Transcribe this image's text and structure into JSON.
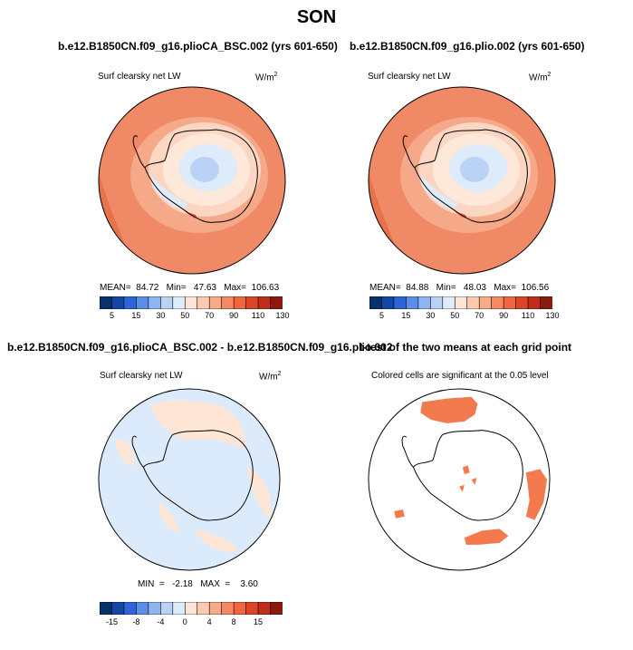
{
  "figure": {
    "title": "SON"
  },
  "panels": {
    "top_left": {
      "title": "b.e12.B1850CN.f09_g16.plioCA_BSC.002 (yrs 601-650)",
      "variable": "Surf clearsky net LW",
      "units_base": "W/m",
      "units_exp": "2",
      "stats": "MEAN=  84.72   Min=   47.63   Max=  106.63"
    },
    "top_right": {
      "title": "b.e12.B1850CN.f09_g16.plio.002 (yrs 601-650)",
      "variable": "Surf clearsky net LW",
      "units_base": "W/m",
      "units_exp": "2",
      "stats": "MEAN=  84.88   Min=   48.03   Max=  106.56"
    },
    "bottom_left": {
      "title": "b.e12.B1850CN.f09_g16.plioCA_BSC.002 - b.e12.B1850CN.f09_g16.plio.002",
      "variable": "Surf clearsky net LW",
      "units_base": "W/m",
      "units_exp": "2",
      "stats": "MIN  =   -2.18   MAX  =    3.60"
    },
    "bottom_right": {
      "title": "t-test of the two means at each grid point",
      "variable": "Colored cells are significant at the 0.05 level"
    }
  },
  "colorbars": {
    "absolute": {
      "labels": [
        "5",
        "15",
        "30",
        "50",
        "70",
        "90",
        "110",
        "130"
      ],
      "colors": [
        "#08306b",
        "#1346a5",
        "#2c66d6",
        "#5b8ee8",
        "#8fb4f2",
        "#b9d2f6",
        "#deebfa",
        "#fce5d6",
        "#fbcab0",
        "#f8ab88",
        "#f58963",
        "#ef6640",
        "#dc4528",
        "#be2e1a",
        "#8a1a0d"
      ]
    },
    "difference": {
      "labels": [
        "-15",
        "-8",
        "-4",
        "0",
        "4",
        "8",
        "15"
      ],
      "colors": [
        "#08306b",
        "#1346a5",
        "#2c66d6",
        "#5b8ee8",
        "#8fb4f2",
        "#b9d2f6",
        "#deebfa",
        "#fce5d6",
        "#fbcab0",
        "#f8ab88",
        "#f58963",
        "#ef6640",
        "#dc4528",
        "#be2e1a",
        "#8a1a0d"
      ]
    }
  },
  "colors": {
    "ocean_mean": "#f08a66",
    "ocean_warm": "#e86b45",
    "ice_pale": "#fbd6c2",
    "interior_blue": "#b9d2f6",
    "diff_blue": "#dcebfb",
    "diff_peach": "#fde6d6",
    "significant": "#f27a4e"
  },
  "map": {
    "projection": "polar stereographic",
    "region": "Antarctica / Southern Ocean"
  }
}
